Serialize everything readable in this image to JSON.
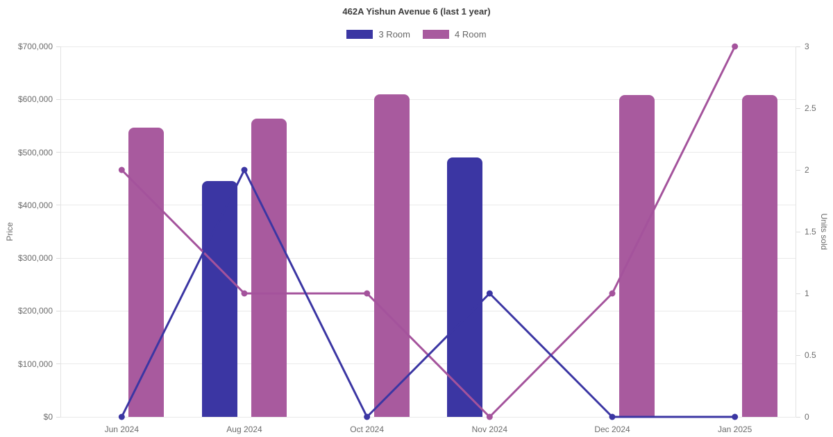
{
  "chart_data": {
    "type": "bar+line",
    "title": "462A Yishun Avenue 6 (last 1 year)",
    "categories": [
      "Jun 2024",
      "Aug 2024",
      "Oct 2024",
      "Nov 2024",
      "Dec 2024",
      "Jan 2025"
    ],
    "left_axis": {
      "label": "Price",
      "min": 0,
      "max": 700000,
      "tick_labels": [
        "$0",
        "$100,000",
        "$200,000",
        "$300,000",
        "$400,000",
        "$500,000",
        "$600,000",
        "$700,000"
      ]
    },
    "right_axis": {
      "label": "Units sold",
      "min": 0,
      "max": 3,
      "tick_labels": [
        "0",
        "0.5",
        "1",
        "1.5",
        "2",
        "2.5",
        "3"
      ]
    },
    "legend": [
      {
        "label": "3 Room",
        "color": "#3b36a3"
      },
      {
        "label": "4 Room",
        "color": "#a85a9e"
      }
    ],
    "bar_series": [
      {
        "name": "3 Room",
        "color": "#3b36a3",
        "axis": "left",
        "values": [
          null,
          446000,
          null,
          490000,
          null,
          null
        ]
      },
      {
        "name": "4 Room",
        "color": "#a85a9e",
        "axis": "left",
        "values": [
          547000,
          564000,
          610000,
          null,
          608000,
          608000
        ]
      }
    ],
    "line_series": [
      {
        "name": "4 Room",
        "color": "#a4539c",
        "axis": "right",
        "values": [
          2,
          1,
          1,
          0,
          1,
          3
        ]
      },
      {
        "name": "3 Room",
        "color": "#3b36a3",
        "axis": "right",
        "values": [
          0,
          2,
          0,
          1,
          0,
          0
        ]
      }
    ],
    "grid": "horizontal-from-left-axis-only",
    "legend_position": "top"
  }
}
